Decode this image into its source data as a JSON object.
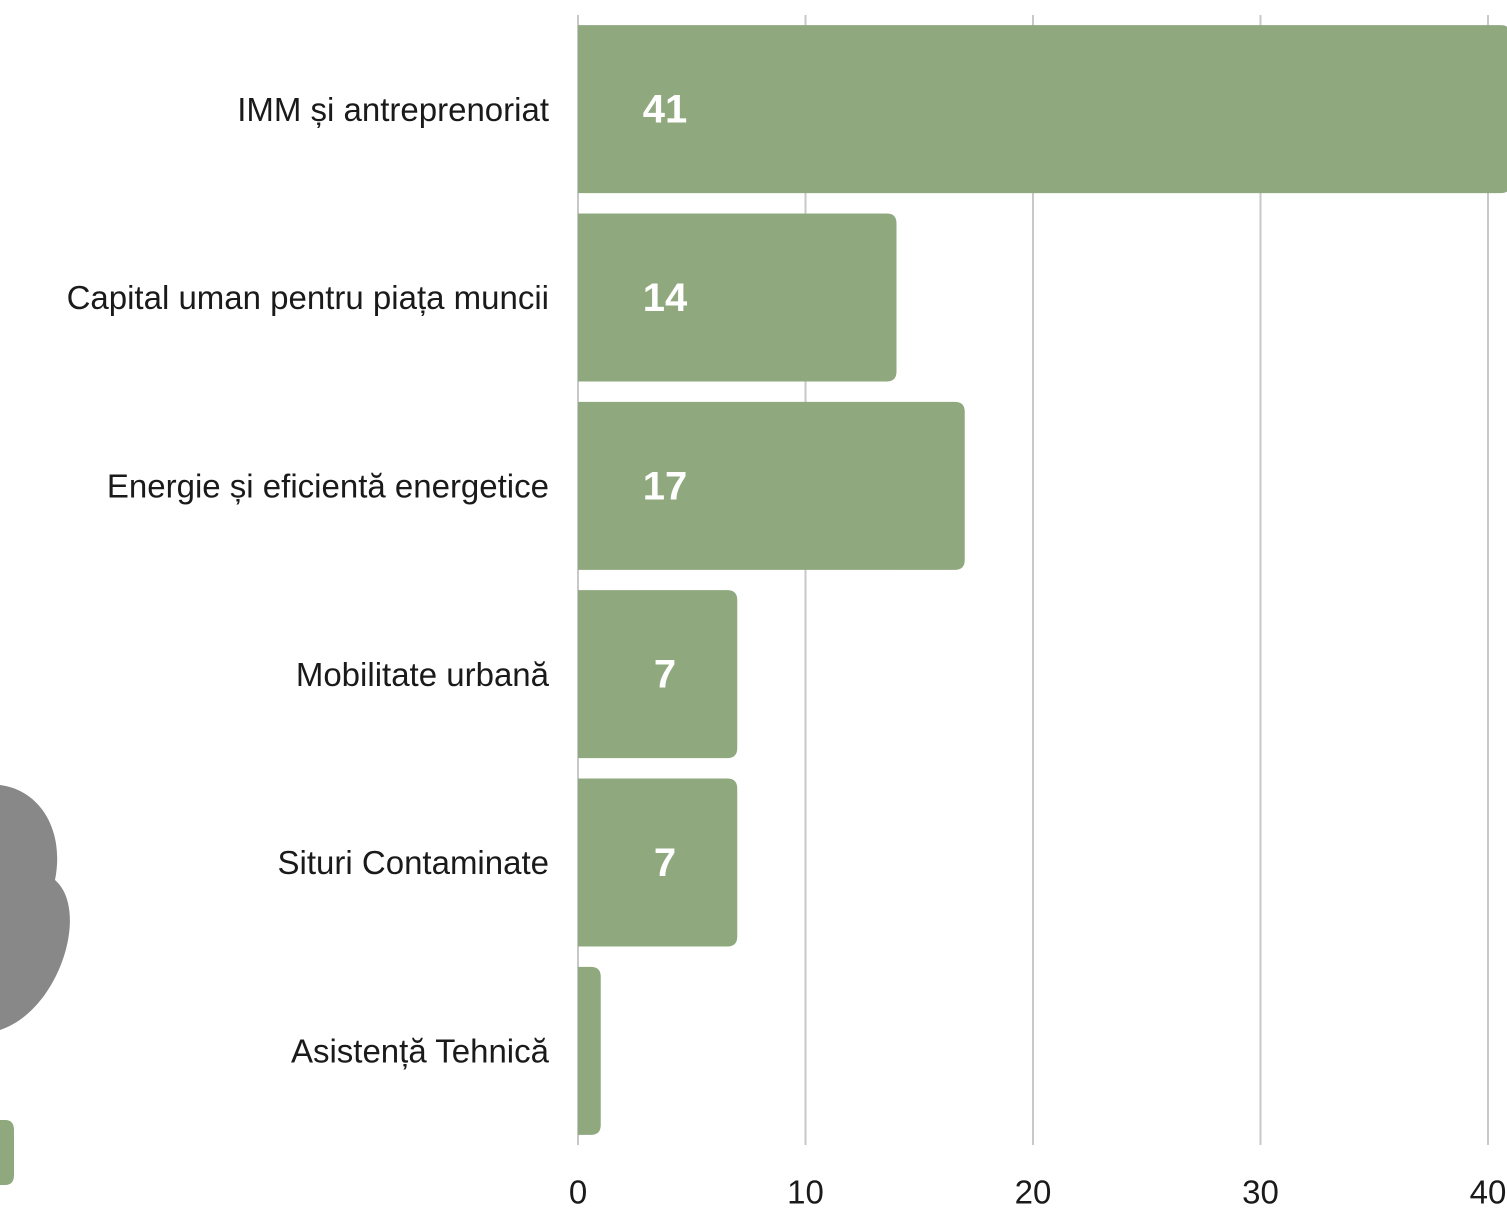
{
  "chart_data": {
    "type": "bar",
    "orientation": "horizontal",
    "categories": [
      "IMM și antreprenoriat",
      "Capital uman pentru piața muncii",
      "Energie și eficientă energetice",
      "Mobilitate urbană",
      "Situri Contaminate",
      "Asistență Tehnică"
    ],
    "values": [
      41,
      14,
      17,
      7,
      7,
      1
    ],
    "value_labels": [
      "41",
      "14",
      "17",
      "7",
      "7",
      null
    ],
    "color": "#8fa87e",
    "xlim": [
      0,
      40
    ],
    "xticks": [
      0,
      10,
      20,
      30,
      40
    ],
    "grid": true
  }
}
